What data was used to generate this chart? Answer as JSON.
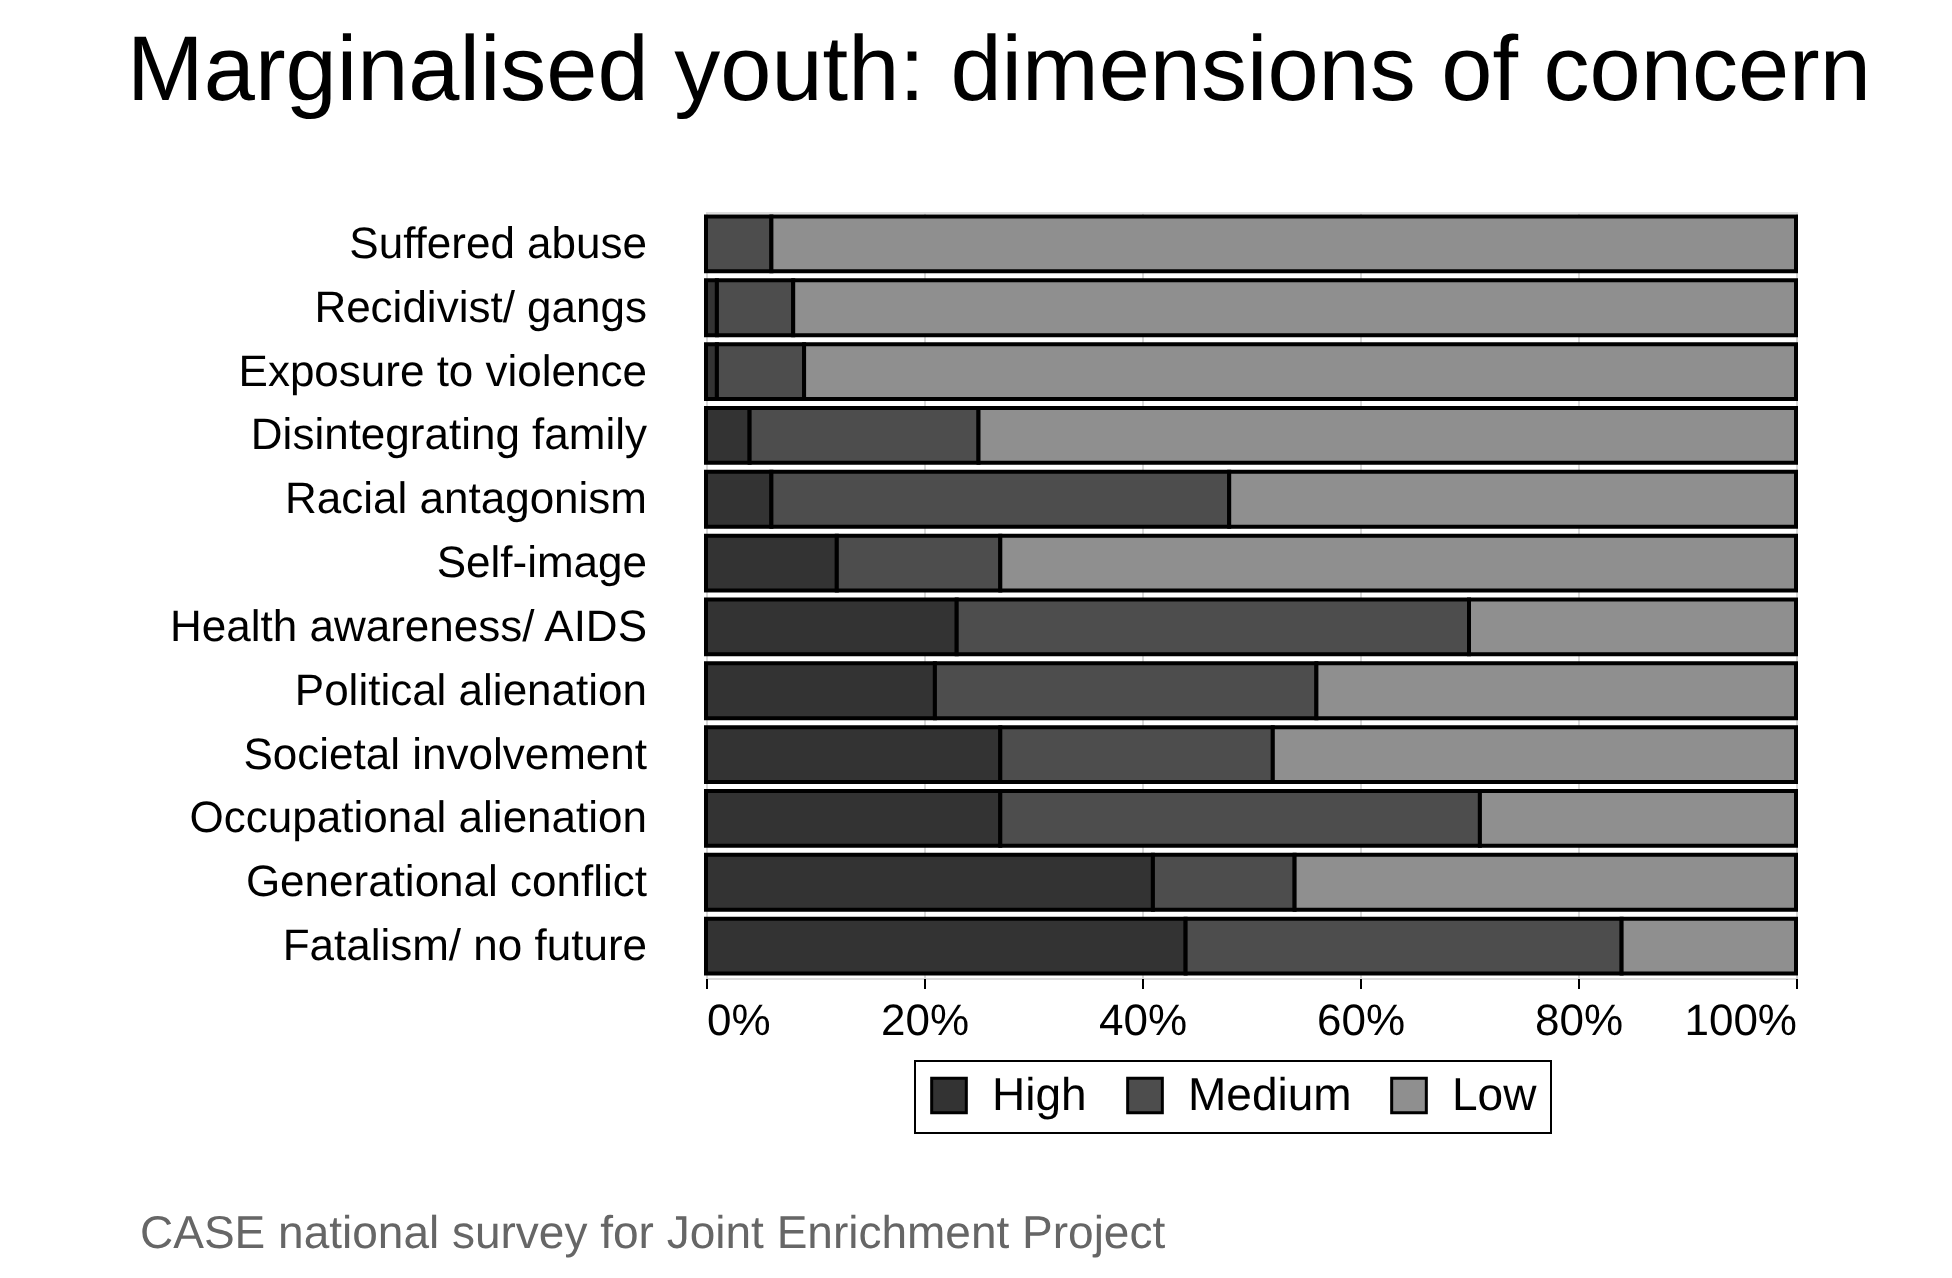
{
  "chart_data": {
    "type": "bar",
    "orientation": "horizontal",
    "stacked": true,
    "title": "Marginalised youth: dimensions of concern",
    "categories": [
      "Suffered abuse",
      "Recidivist/ gangs",
      "Exposure to violence",
      "Disintegrating family",
      "Racial antagonism",
      "Self-image",
      "Health awareness/ AIDS",
      "Political alienation",
      "Societal involvement",
      "Occupational alienation",
      "Generational conflict",
      "Fatalism/ no future"
    ],
    "series": [
      {
        "name": "High",
        "color": "#333333",
        "values": [
          0,
          1,
          1,
          4,
          6,
          12,
          23,
          21,
          27,
          27,
          41,
          44
        ]
      },
      {
        "name": "Medium",
        "color": "#4d4d4d",
        "values": [
          6,
          7,
          8,
          21,
          42,
          15,
          47,
          35,
          25,
          44,
          13,
          40
        ]
      },
      {
        "name": "Low",
        "color": "#8f8f8f",
        "values": [
          94,
          92,
          91,
          75,
          52,
          73,
          30,
          44,
          48,
          29,
          46,
          16
        ]
      }
    ],
    "xlim": [
      0,
      100
    ],
    "xticks": [
      {
        "value": 0,
        "label": "0%"
      },
      {
        "value": 20,
        "label": "20%"
      },
      {
        "value": 40,
        "label": "40%"
      },
      {
        "value": 60,
        "label": "60%"
      },
      {
        "value": 80,
        "label": "80%"
      },
      {
        "value": 100,
        "label": "100%"
      }
    ],
    "grid": "x",
    "legend": "bottom",
    "annotations": [
      "CASE national survey for Joint Enrichment Project"
    ]
  }
}
